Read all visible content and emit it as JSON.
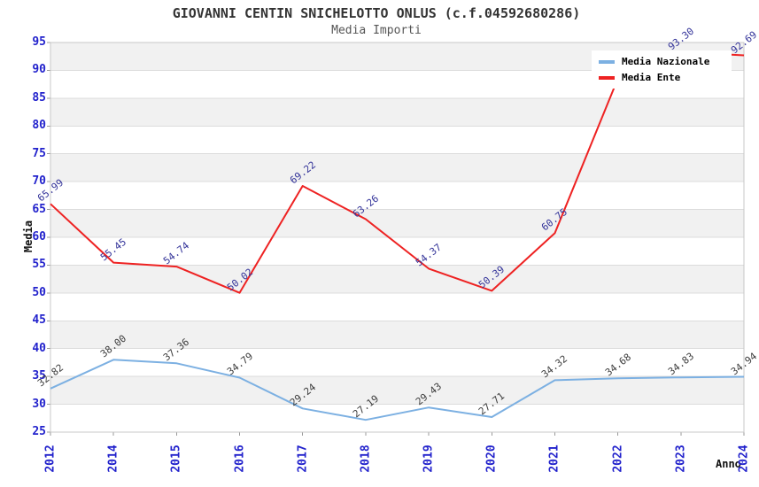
{
  "header": {
    "title": "GIOVANNI CENTIN SNICHELOTTO ONLUS (c.f.04592680286)",
    "subtitle": "Media Importi"
  },
  "axes": {
    "y_title": "Media",
    "x_title": "Anno"
  },
  "legend": {
    "position": "top-right-inside",
    "items": [
      {
        "label": "Media Nazionale"
      },
      {
        "label": "Media Ente"
      }
    ]
  },
  "colors": {
    "tick_label": "#2222cc",
    "band": "#f1f1f1",
    "grid": "#dcdcdc",
    "plot_border": "#c8c8c8",
    "tick_mark": "#999999",
    "nazionale_line": "#7cb0e2",
    "ente_line": "#ee2222",
    "nazionale_data_label": "#3c3c3c",
    "ente_data_label": "#333399"
  },
  "chart_data": {
    "type": "line",
    "title": "GIOVANNI CENTIN SNICHELOTTO ONLUS (c.f.04592680286)",
    "subtitle": "Media Importi",
    "xlabel": "Anno",
    "ylabel": "Media",
    "x_categories": [
      "2012",
      "2014",
      "2015",
      "2016",
      "2017",
      "2018",
      "2019",
      "2020",
      "2021",
      "2022",
      "2023",
      "2024"
    ],
    "ylim": [
      25,
      95
    ],
    "ytick_step": 5,
    "grid": "horizontal-bands",
    "legend_position": "top-right-inside",
    "series": [
      {
        "name": "Media Nazionale",
        "color": "#7cb0e2",
        "label_color": "#3c3c3c",
        "values": [
          32.82,
          38.0,
          37.36,
          34.79,
          29.24,
          27.19,
          29.43,
          27.71,
          34.32,
          34.68,
          34.83,
          34.94
        ],
        "labels": [
          "32.82",
          "38.00",
          "37.36",
          "34.79",
          "29.24",
          "27.19",
          "29.43",
          "27.71",
          "34.32",
          "34.68",
          "34.83",
          "34.94"
        ]
      },
      {
        "name": "Media Ente",
        "color": "#ee2222",
        "label_color": "#333399",
        "values": [
          65.99,
          55.45,
          54.74,
          50.02,
          69.22,
          63.26,
          54.37,
          50.39,
          60.75,
          88.5,
          93.3,
          92.69
        ],
        "labels": [
          "65.99",
          "55.45",
          "54.74",
          "50.02",
          "69.22",
          "63.26",
          "54.37",
          "50.39",
          "60.75",
          null,
          "93.30",
          "92.69"
        ]
      }
    ]
  }
}
